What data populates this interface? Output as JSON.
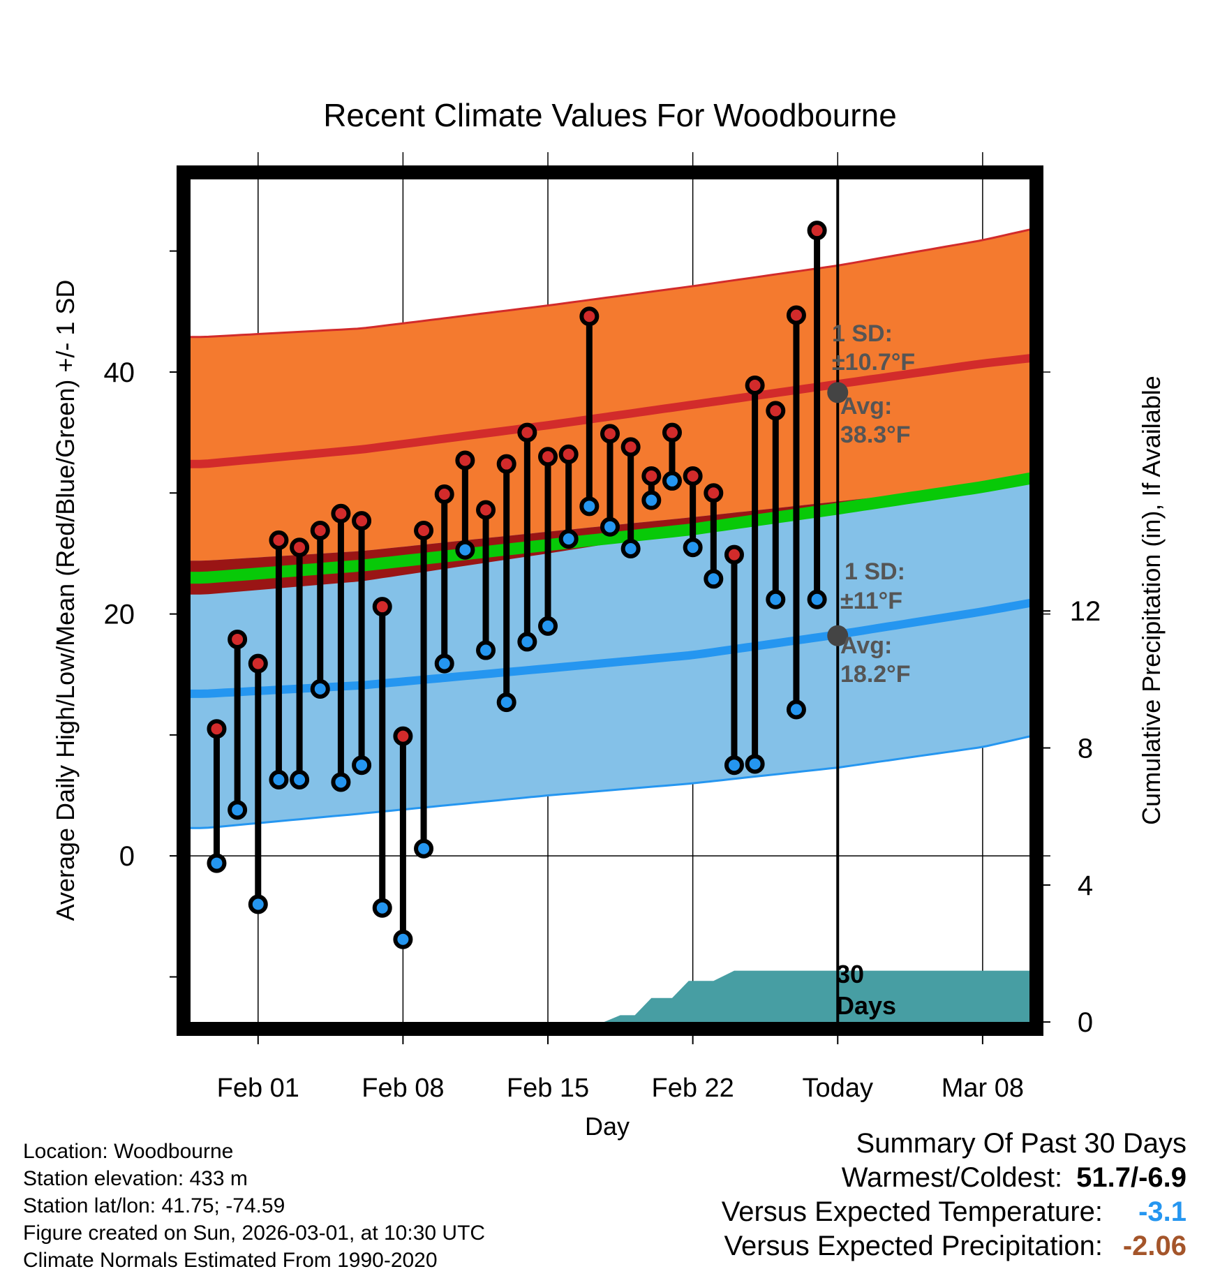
{
  "chart_data": {
    "type": "line",
    "title": "Recent Climate Values For Woodbourne",
    "xlabel": "Day",
    "ylabel": "Average Daily High/Low/Mean (Red/Blue/Green) +/- 1 SD",
    "y2label": "Cumulative Precipitation (in), If Available",
    "x_range": [
      -3.6,
      37.6
    ],
    "ylim": [
      -14.3,
      56.5
    ],
    "y2lim": [
      -0.2,
      24.8
    ],
    "yticks_labeled": [
      0,
      20,
      40
    ],
    "yticks_minor": [
      -10,
      10,
      30,
      50
    ],
    "y2ticks": [
      0,
      4,
      8,
      12
    ],
    "xticks": [
      {
        "x": 0,
        "label": "Feb 01"
      },
      {
        "x": 7,
        "label": "Feb 08"
      },
      {
        "x": 14,
        "label": "Feb 15"
      },
      {
        "x": 21,
        "label": "Feb 22"
      },
      {
        "x": 28,
        "label": "Today"
      },
      {
        "x": 35,
        "label": "Mar 08"
      }
    ],
    "today_x": 28,
    "normals": {
      "x": [
        -2.6,
        5,
        14,
        21,
        28,
        35,
        37.6
      ],
      "high_mean": [
        32.4,
        33.6,
        35.6,
        37.3,
        39.0,
        40.7,
        41.2
      ],
      "high_upper": [
        42.9,
        43.6,
        45.5,
        47.1,
        48.8,
        50.9,
        51.9
      ],
      "high_lower": [
        21.6,
        22.7,
        25.0,
        26.9,
        28.8,
        30.6,
        31.2
      ],
      "low_mean": [
        13.4,
        14.1,
        15.5,
        16.6,
        18.3,
        20.2,
        21.0
      ],
      "low_upper": [
        24.4,
        25.2,
        26.8,
        28.0,
        29.3,
        30.6,
        31.0
      ],
      "low_lower": [
        2.3,
        3.5,
        5.0,
        6.0,
        7.3,
        9.0,
        10.0
      ],
      "mean_mean": [
        23.0,
        24.0,
        25.7,
        27.0,
        28.7,
        30.5,
        31.3
      ]
    },
    "series": [
      {
        "name": "Daily High",
        "color": "#d22b2b",
        "values": [
          10.5,
          17.9,
          15.9,
          26.1,
          25.5,
          26.9,
          28.3,
          27.7,
          20.6,
          9.9,
          26.9,
          29.9,
          32.7,
          28.6,
          32.4,
          35.0,
          33.0,
          33.2,
          44.6,
          34.9,
          33.8,
          31.4,
          35.0,
          31.4,
          30.0,
          24.9,
          38.9,
          36.8,
          44.7,
          51.7
        ]
      },
      {
        "name": "Daily Low",
        "color": "#2596f0",
        "values": [
          -0.6,
          3.8,
          -4.0,
          6.3,
          6.3,
          13.8,
          6.1,
          7.5,
          -4.3,
          -6.9,
          0.6,
          15.9,
          25.3,
          17.0,
          12.7,
          17.7,
          19.0,
          26.2,
          28.9,
          27.2,
          25.4,
          29.4,
          31.0,
          25.5,
          22.9,
          7.5,
          7.6,
          21.2,
          12.1,
          21.2
        ]
      }
    ],
    "dates": [
      "Jan 30",
      "Jan 31",
      "Feb 01",
      "Feb 02",
      "Feb 03",
      "Feb 04",
      "Feb 05",
      "Feb 06",
      "Feb 07",
      "Feb 08",
      "Feb 09",
      "Feb 10",
      "Feb 11",
      "Feb 12",
      "Feb 13",
      "Feb 14",
      "Feb 15",
      "Feb 16",
      "Feb 17",
      "Feb 18",
      "Feb 19",
      "Feb 20",
      "Feb 21",
      "Feb 22",
      "Feb 23",
      "Feb 24",
      "Feb 25",
      "Feb 26",
      "Feb 27",
      "Feb 28"
    ],
    "precip": {
      "x": [
        16.7,
        17.5,
        18.2,
        19.0,
        19.8,
        20.0,
        20.8,
        21.3,
        22.0,
        23.0,
        24.0,
        28.0,
        37.6
      ],
      "values": [
        0,
        0.2,
        0.2,
        0.7,
        0.7,
        0.7,
        1.2,
        1.2,
        1.2,
        1.5,
        1.5,
        1.5,
        1.5
      ],
      "label_line1": "30",
      "label_line2": "Days"
    },
    "annotations": {
      "high_sd_label": "1 SD:",
      "high_sd_value": "±10.7°F",
      "high_avg_label": "Avg:",
      "high_avg_value": "38.3°F",
      "high_avg_y": 38.3,
      "low_sd_label": "1 SD:",
      "low_sd_value": "±11°F",
      "low_avg_label": "Avg:",
      "low_avg_value": "18.2°F",
      "low_avg_y": 18.2
    },
    "colors": {
      "high_band": "#f47a2f",
      "high_line": "#d22b2b",
      "low_band": "#84c1e8",
      "low_line": "#2596f0",
      "mean_line": "#08c908",
      "overlap": "#9a1515",
      "precip_fill": "#479ea3",
      "annotation": "#555555"
    }
  },
  "info": {
    "location": "Location: Woodbourne",
    "elevation": "Station elevation: 433 m",
    "latlon": "Station lat/lon: 41.75; -74.59",
    "created": "Figure created on Sun, 2026-03-01, at 10:30 UTC",
    "normals": "Climate Normals Estimated From 1990-2020"
  },
  "summary": {
    "title": "Summary Of Past 30 Days",
    "warm_cold_label": "Warmest/Coldest:",
    "warm_cold_value": "51.7/-6.9",
    "temp_label": "Versus Expected Temperature:",
    "temp_value": "-3.1",
    "temp_color": "#2596f0",
    "precip_label": "Versus Expected Precipitation:",
    "precip_value": "-2.06",
    "precip_color": "#a4552a"
  }
}
